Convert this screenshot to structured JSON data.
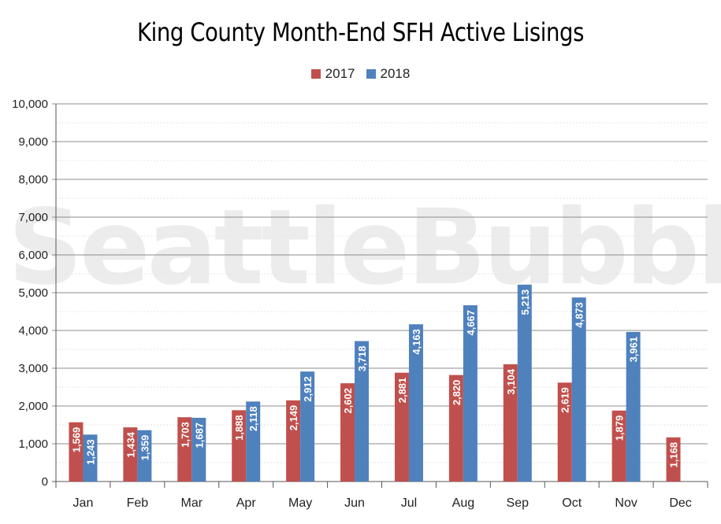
{
  "watermark": "SeattleBubble.com",
  "chart_data": {
    "type": "bar",
    "title": "King County Month-End SFH Active Lisings",
    "xlabel": "",
    "ylabel": "",
    "ylim": [
      0,
      10000
    ],
    "yticks": [
      0,
      1000,
      2000,
      3000,
      4000,
      5000,
      6000,
      7000,
      8000,
      9000,
      10000
    ],
    "ytick_labels": [
      "0",
      "1,000",
      "2,000",
      "3,000",
      "4,000",
      "5,000",
      "6,000",
      "7,000",
      "8,000",
      "9,000",
      "10,000"
    ],
    "grid": true,
    "legend": "top-center",
    "categories": [
      "Jan",
      "Feb",
      "Mar",
      "Apr",
      "May",
      "Jun",
      "Jul",
      "Aug",
      "Sep",
      "Oct",
      "Nov",
      "Dec"
    ],
    "series": [
      {
        "name": "2017",
        "color": "#c0504d",
        "values": [
          1569,
          1434,
          1703,
          1888,
          2149,
          2602,
          2881,
          2820,
          3104,
          2619,
          1879,
          1168
        ],
        "labels": [
          "1,569",
          "1,434",
          "1,703",
          "1,888",
          "2,149",
          "2,602",
          "2,881",
          "2,820",
          "3,104",
          "2,619",
          "1,879",
          "1,168"
        ]
      },
      {
        "name": "2018",
        "color": "#4f81bd",
        "values": [
          1243,
          1359,
          1687,
          2118,
          2912,
          3718,
          4163,
          4667,
          5213,
          4873,
          3961,
          null
        ],
        "labels": [
          "1,243",
          "1,359",
          "1,687",
          "2,118",
          "2,912",
          "3,718",
          "4,163",
          "4,667",
          "5,213",
          "4,873",
          "3,961",
          ""
        ]
      }
    ]
  }
}
